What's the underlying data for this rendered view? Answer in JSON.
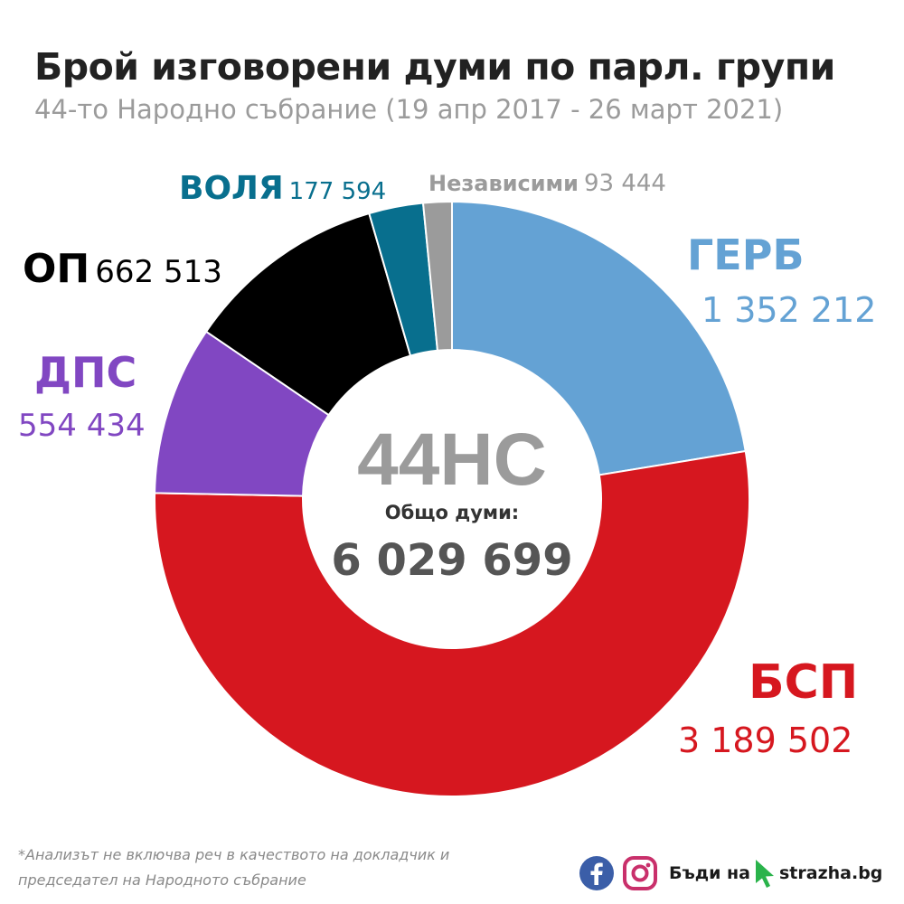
{
  "header": {
    "title": "Брой изговорени думи по парл. групи",
    "subtitle": "44-то Народно събрание (19 апр 2017 - 26 март 2021)"
  },
  "center": {
    "label": "44НС",
    "total_label": "Общо думи:",
    "total_value": "6 029 699"
  },
  "labels": {
    "gerb_name": "ГЕРБ",
    "gerb_value": "1 352 212",
    "bsp_name": "БСП",
    "bsp_value": "3 189 502",
    "dps_name": "ДПС",
    "dps_value": "554 434",
    "op_name": "ОП",
    "op_value": "662 513",
    "volya_name": "ВОЛЯ",
    "volya_value": "177 594",
    "ind_name": "Независими",
    "ind_value": "93 444"
  },
  "footnote": {
    "line1": "*Анализът не включва реч в качеството на докладчик и",
    "line2": "председател на Народното събрание"
  },
  "branding": {
    "facebook_icon": "facebook-icon",
    "instagram_icon": "instagram-icon",
    "text1": "Бъди на",
    "cursor_icon": "cursor-arrow-icon",
    "text2": "strazha.bg"
  },
  "chart_data": {
    "type": "pie",
    "donut": true,
    "title": "Брой изговорени думи по парл. групи",
    "subtitle": "44-то Народно събрание (19 апр 2017 - 26 март 2021)",
    "categories": [
      "ГЕРБ",
      "БСП",
      "ДПС",
      "ОП",
      "ВОЛЯ",
      "Независими"
    ],
    "values": [
      1352212,
      3189502,
      554434,
      662513,
      177594,
      93444
    ],
    "colors": [
      "#64a2d4",
      "#d6171f",
      "#8147c2",
      "#000000",
      "#086f8e",
      "#9b9b9b"
    ],
    "start": "top, clockwise",
    "total": 6029699
  }
}
